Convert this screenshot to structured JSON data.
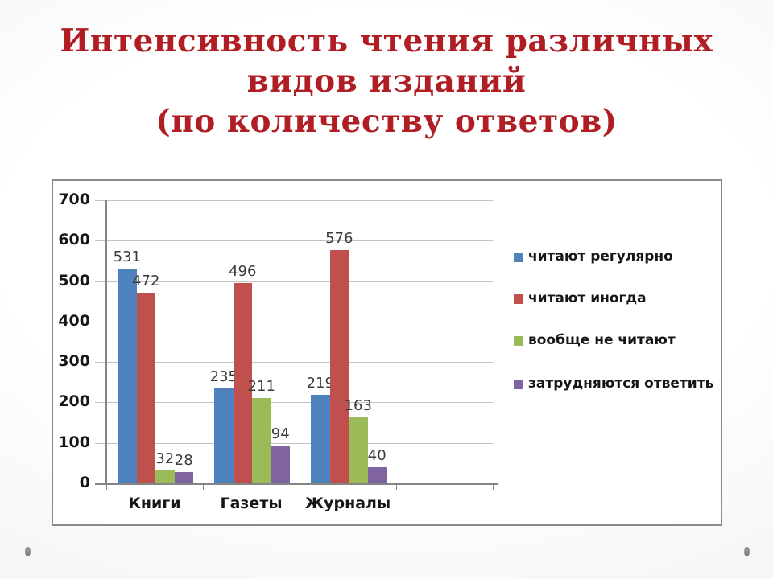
{
  "slide": {
    "title_lines": [
      "Интенсивность чтения различных",
      "видов изданий",
      "(по количеству ответов)"
    ],
    "title_color": "#B01E24"
  },
  "chart_data": {
    "type": "bar",
    "title": "Интенсивность чтения различных видов изданий (по количеству ответов)",
    "categories": [
      "Книги",
      "Газеты",
      "Журналы"
    ],
    "series": [
      {
        "name": "читают регулярно",
        "color": "#4F81BD",
        "values": [
          531,
          235,
          219
        ]
      },
      {
        "name": "читают иногда",
        "color": "#C0504D",
        "values": [
          472,
          496,
          576
        ]
      },
      {
        "name": "вообще не читают",
        "color": "#9BBB59",
        "values": [
          32,
          211,
          163
        ]
      },
      {
        "name": "затрудняются ответить",
        "color": "#8064A2",
        "values": [
          28,
          94,
          40
        ]
      }
    ],
    "xlabel": "",
    "ylabel": "",
    "ylim": [
      0,
      700
    ],
    "ytick_step": 100,
    "ytick_labels": [
      "0",
      "100",
      "200",
      "300",
      "400",
      "500",
      "600",
      "700"
    ],
    "grid": true,
    "data_labels": true,
    "legend_position": "right",
    "plot_background": "#FFFFFF",
    "gridline_color": "#C3C3C3",
    "axis_color": "#848484"
  }
}
